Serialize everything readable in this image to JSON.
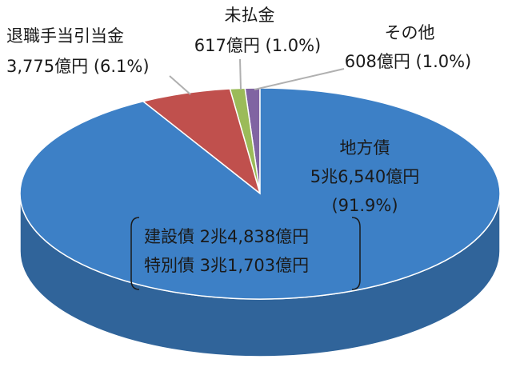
{
  "chart_data": {
    "type": "pie",
    "categories": [
      "その他",
      "未払金",
      "退職手当引当金",
      "地方債"
    ],
    "values": [
      1.0,
      1.0,
      6.1,
      91.9
    ],
    "value_labels": [
      "(1.0%)",
      "(1.0%)",
      "(6.1%)",
      "(91.9%)"
    ],
    "amounts": [
      "608億円",
      "617億円",
      "3,775億円",
      "5兆6,540億円"
    ],
    "colors": [
      "#8064a2",
      "#9bbb59",
      "#c0504d",
      "#3d80c6"
    ],
    "annotations": [
      "建設債 2兆4,838億円",
      "特別債 3兆1,703億円"
    ]
  }
}
